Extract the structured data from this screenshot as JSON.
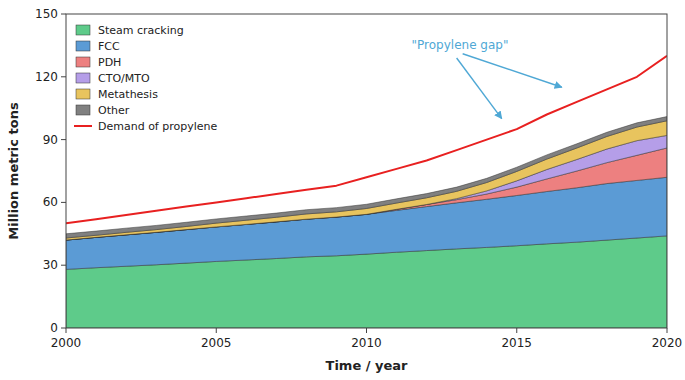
{
  "chart_data": {
    "type": "area",
    "stacked": true,
    "x": [
      2000,
      2001,
      2002,
      2003,
      2004,
      2005,
      2006,
      2007,
      2008,
      2009,
      2010,
      2011,
      2012,
      2013,
      2014,
      2015,
      2016,
      2017,
      2018,
      2019,
      2020
    ],
    "series": [
      {
        "name": "Steam cracking",
        "color": "#5ecb8a",
        "values": [
          28,
          28.8,
          29.5,
          30.2,
          31,
          31.8,
          32.5,
          33.2,
          34,
          34.5,
          35.3,
          36.2,
          37,
          37.8,
          38.5,
          39.3,
          40.2,
          41,
          42,
          43,
          44
        ]
      },
      {
        "name": "FCC",
        "color": "#5b9bd5",
        "values": [
          14,
          14.5,
          15,
          15.5,
          16,
          16.5,
          17,
          17.5,
          18,
          18.5,
          19,
          20,
          21,
          22,
          23,
          24,
          25,
          26,
          27,
          27.5,
          28
        ]
      },
      {
        "name": "PDH",
        "color": "#ed8080",
        "values": [
          0,
          0,
          0,
          0,
          0,
          0,
          0,
          0,
          0,
          0,
          0,
          0.5,
          1,
          1.5,
          2.5,
          4,
          6,
          8,
          10,
          12,
          14
        ]
      },
      {
        "name": "CTO/MTO",
        "color": "#b59ee8",
        "values": [
          0,
          0,
          0,
          0,
          0,
          0,
          0,
          0,
          0,
          0,
          0,
          0,
          0,
          0.5,
          1.5,
          3,
          4.5,
          5.5,
          6.5,
          7,
          6
        ]
      },
      {
        "name": "Metathesis",
        "color": "#e8c45e",
        "values": [
          1,
          1,
          1.2,
          1.3,
          1.5,
          1.8,
          2,
          2.2,
          2.5,
          2.5,
          2.8,
          3,
          3.2,
          3.5,
          4,
          4.5,
          5,
          5.5,
          6,
          6.5,
          7
        ]
      },
      {
        "name": "Other",
        "color": "#808080",
        "values": [
          2,
          2,
          2,
          2,
          2,
          2,
          2,
          2,
          2,
          2,
          2,
          2,
          2,
          2,
          2,
          2,
          2,
          2,
          2,
          2,
          2
        ]
      },
      {
        "name": "Demand of propylene",
        "type": "line",
        "color": "#e82020",
        "values": [
          50,
          52,
          54,
          56,
          58,
          60,
          62,
          64,
          66,
          68,
          72,
          76,
          80,
          85,
          90,
          95,
          102,
          108,
          114,
          120,
          130
        ]
      }
    ],
    "xlabel": "Time / year",
    "ylabel": "Million metric tons",
    "xlim": [
      2000,
      2020
    ],
    "ylim": [
      0,
      150
    ],
    "xticks": [
      2000,
      2005,
      2010,
      2015,
      2020
    ],
    "yticks": [
      0,
      30,
      60,
      90,
      120,
      150
    ],
    "grid": false,
    "legend": "upper left",
    "annotations": [
      {
        "text": "\"Propylene gap\"",
        "x": 2011.5,
        "y": 135,
        "color": "#4fa8d5",
        "arrows": [
          {
            "x": 2013.2,
            "y": 131,
            "head_x": 2016.5,
            "head_y": 115
          },
          {
            "x": 2013.0,
            "y": 129,
            "head_x": 2014.5,
            "head_y": 100
          }
        ]
      }
    ]
  }
}
